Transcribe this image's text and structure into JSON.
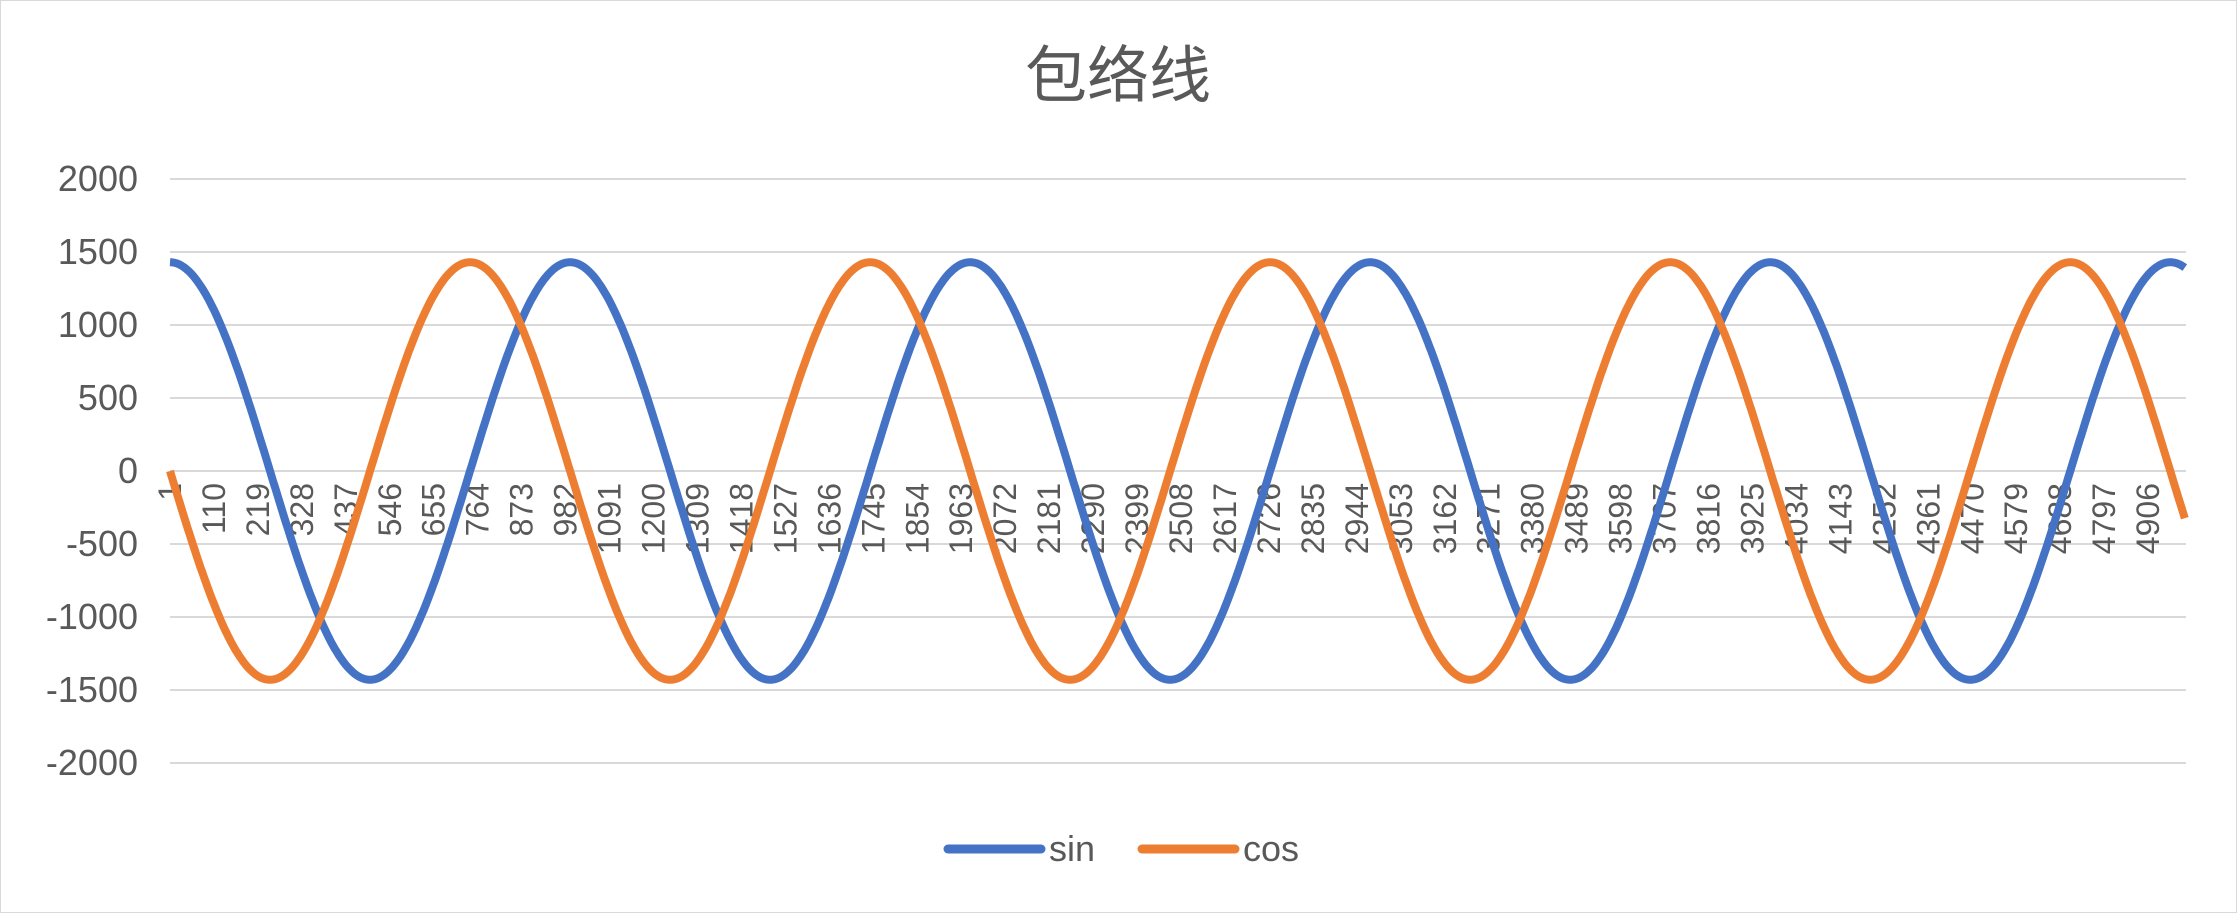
{
  "chart_data": {
    "type": "line",
    "title": "包络线",
    "xlabel": "",
    "ylabel": "",
    "ylim": [
      -2000,
      2000
    ],
    "yticks": [
      "2000",
      "1500",
      "1000",
      "500",
      "0",
      "-500",
      "-1000",
      "-1500",
      "-2000"
    ],
    "xlim": [
      1,
      5000
    ],
    "xticks": [
      "1",
      "110",
      "219",
      "328",
      "437",
      "546",
      "655",
      "764",
      "873",
      "982",
      "1091",
      "1200",
      "1309",
      "1418",
      "1527",
      "1636",
      "1745",
      "1854",
      "1963",
      "2072",
      "2181",
      "2290",
      "2399",
      "2508",
      "2617",
      "2726",
      "2835",
      "2944",
      "3053",
      "3162",
      "3271",
      "3380",
      "3489",
      "3598",
      "3707",
      "3816",
      "3925",
      "4034",
      "4143",
      "4252",
      "4361",
      "4470",
      "4579",
      "4688",
      "4797",
      "4906"
    ],
    "grid": true,
    "legend_position": "bottom",
    "series": [
      {
        "name": "sin",
        "color": "#4472c4",
        "x": [
          1,
          496,
          992,
          1488,
          1984,
          2480,
          2976,
          3472,
          3968,
          4464,
          4960,
          5000
        ],
        "values": [
          1430,
          -1430,
          1430,
          -1430,
          1430,
          -1430,
          1430,
          -1430,
          1430,
          -1430,
          1430,
          1400
        ],
        "amplitude": 1430,
        "period": 992
      },
      {
        "name": "cos",
        "color": "#ed7d31",
        "x": [
          1,
          248,
          744,
          1240,
          1736,
          2232,
          2728,
          3224,
          3720,
          4216,
          4712,
          5000
        ],
        "values": [
          -30,
          -1430,
          1430,
          -1430,
          1430,
          -1430,
          1430,
          -1430,
          1430,
          -1430,
          1430,
          -300
        ],
        "amplitude": 1430,
        "period": 992
      }
    ]
  }
}
